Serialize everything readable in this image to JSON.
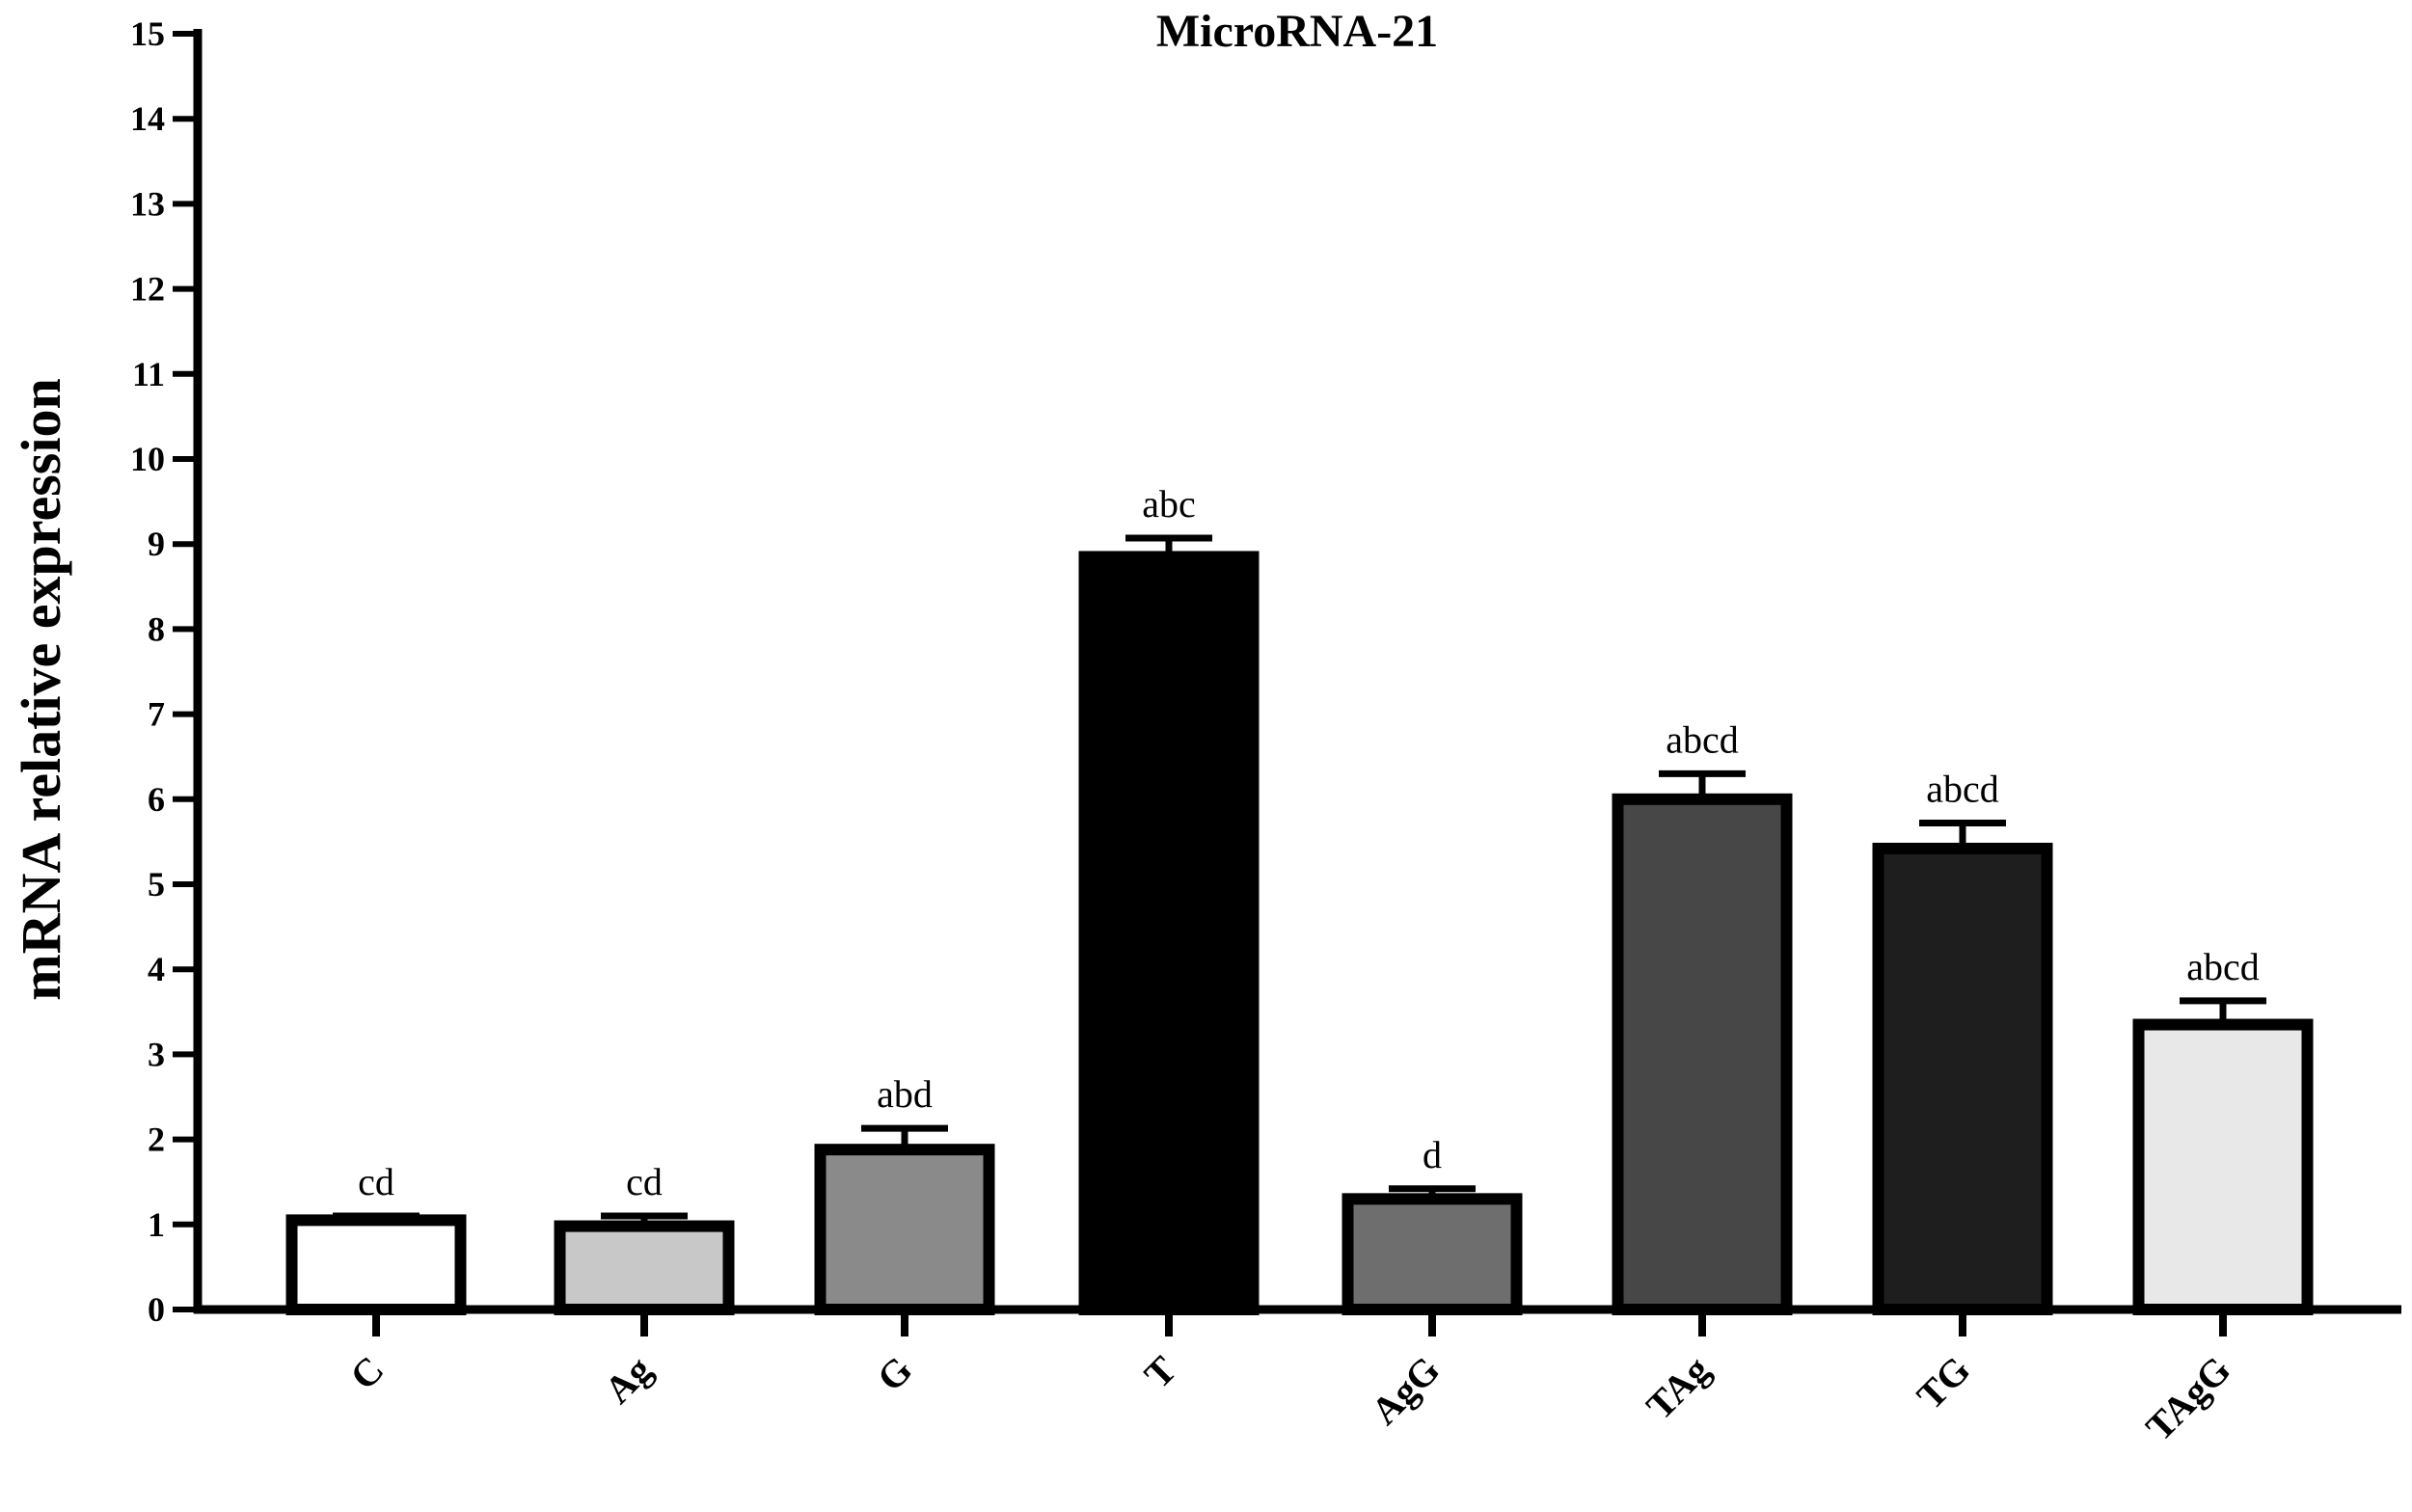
{
  "chart_data": {
    "type": "bar",
    "title": "MicroRNA-21",
    "xlabel": "",
    "ylabel": "mRNA relative expression",
    "ylim": [
      0,
      15
    ],
    "yticks": [
      "0",
      "1",
      "2",
      "3",
      "4",
      "5",
      "6",
      "7",
      "8",
      "9",
      "10",
      "11",
      "12",
      "13",
      "14",
      "15"
    ],
    "categories": [
      "C",
      "Ag",
      "G",
      "T",
      "AgG",
      "TAg",
      "TG",
      "TAgG"
    ],
    "values": [
      1.05,
      0.98,
      1.88,
      8.85,
      1.3,
      6.0,
      5.42,
      3.35
    ],
    "errors": [
      0.05,
      0.12,
      0.25,
      0.22,
      0.12,
      0.3,
      0.3,
      0.28
    ],
    "significance_labels": [
      "cd",
      "cd",
      "abd",
      "abc",
      "d",
      "abcd",
      "abcd",
      "abcd"
    ],
    "bar_colors": [
      "#ffffff",
      "#c8c8c8",
      "#8a8a8a",
      "#000000",
      "#6e6e6e",
      "#474747",
      "#1e1e1e",
      "#e8e8e8"
    ],
    "legend": null,
    "grid": false
  }
}
